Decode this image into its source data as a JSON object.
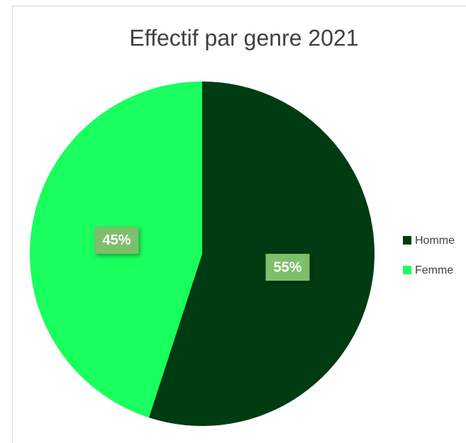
{
  "chart_data": {
    "type": "pie",
    "title": "Effectif par genre 2021",
    "categories": [
      "Homme",
      "Femme"
    ],
    "values": [
      55,
      45
    ],
    "value_labels": [
      "55%",
      "45%"
    ],
    "colors": [
      "#003b12",
      "#19ff5e"
    ],
    "label_color": "#7dbf6b",
    "legend": "right"
  }
}
